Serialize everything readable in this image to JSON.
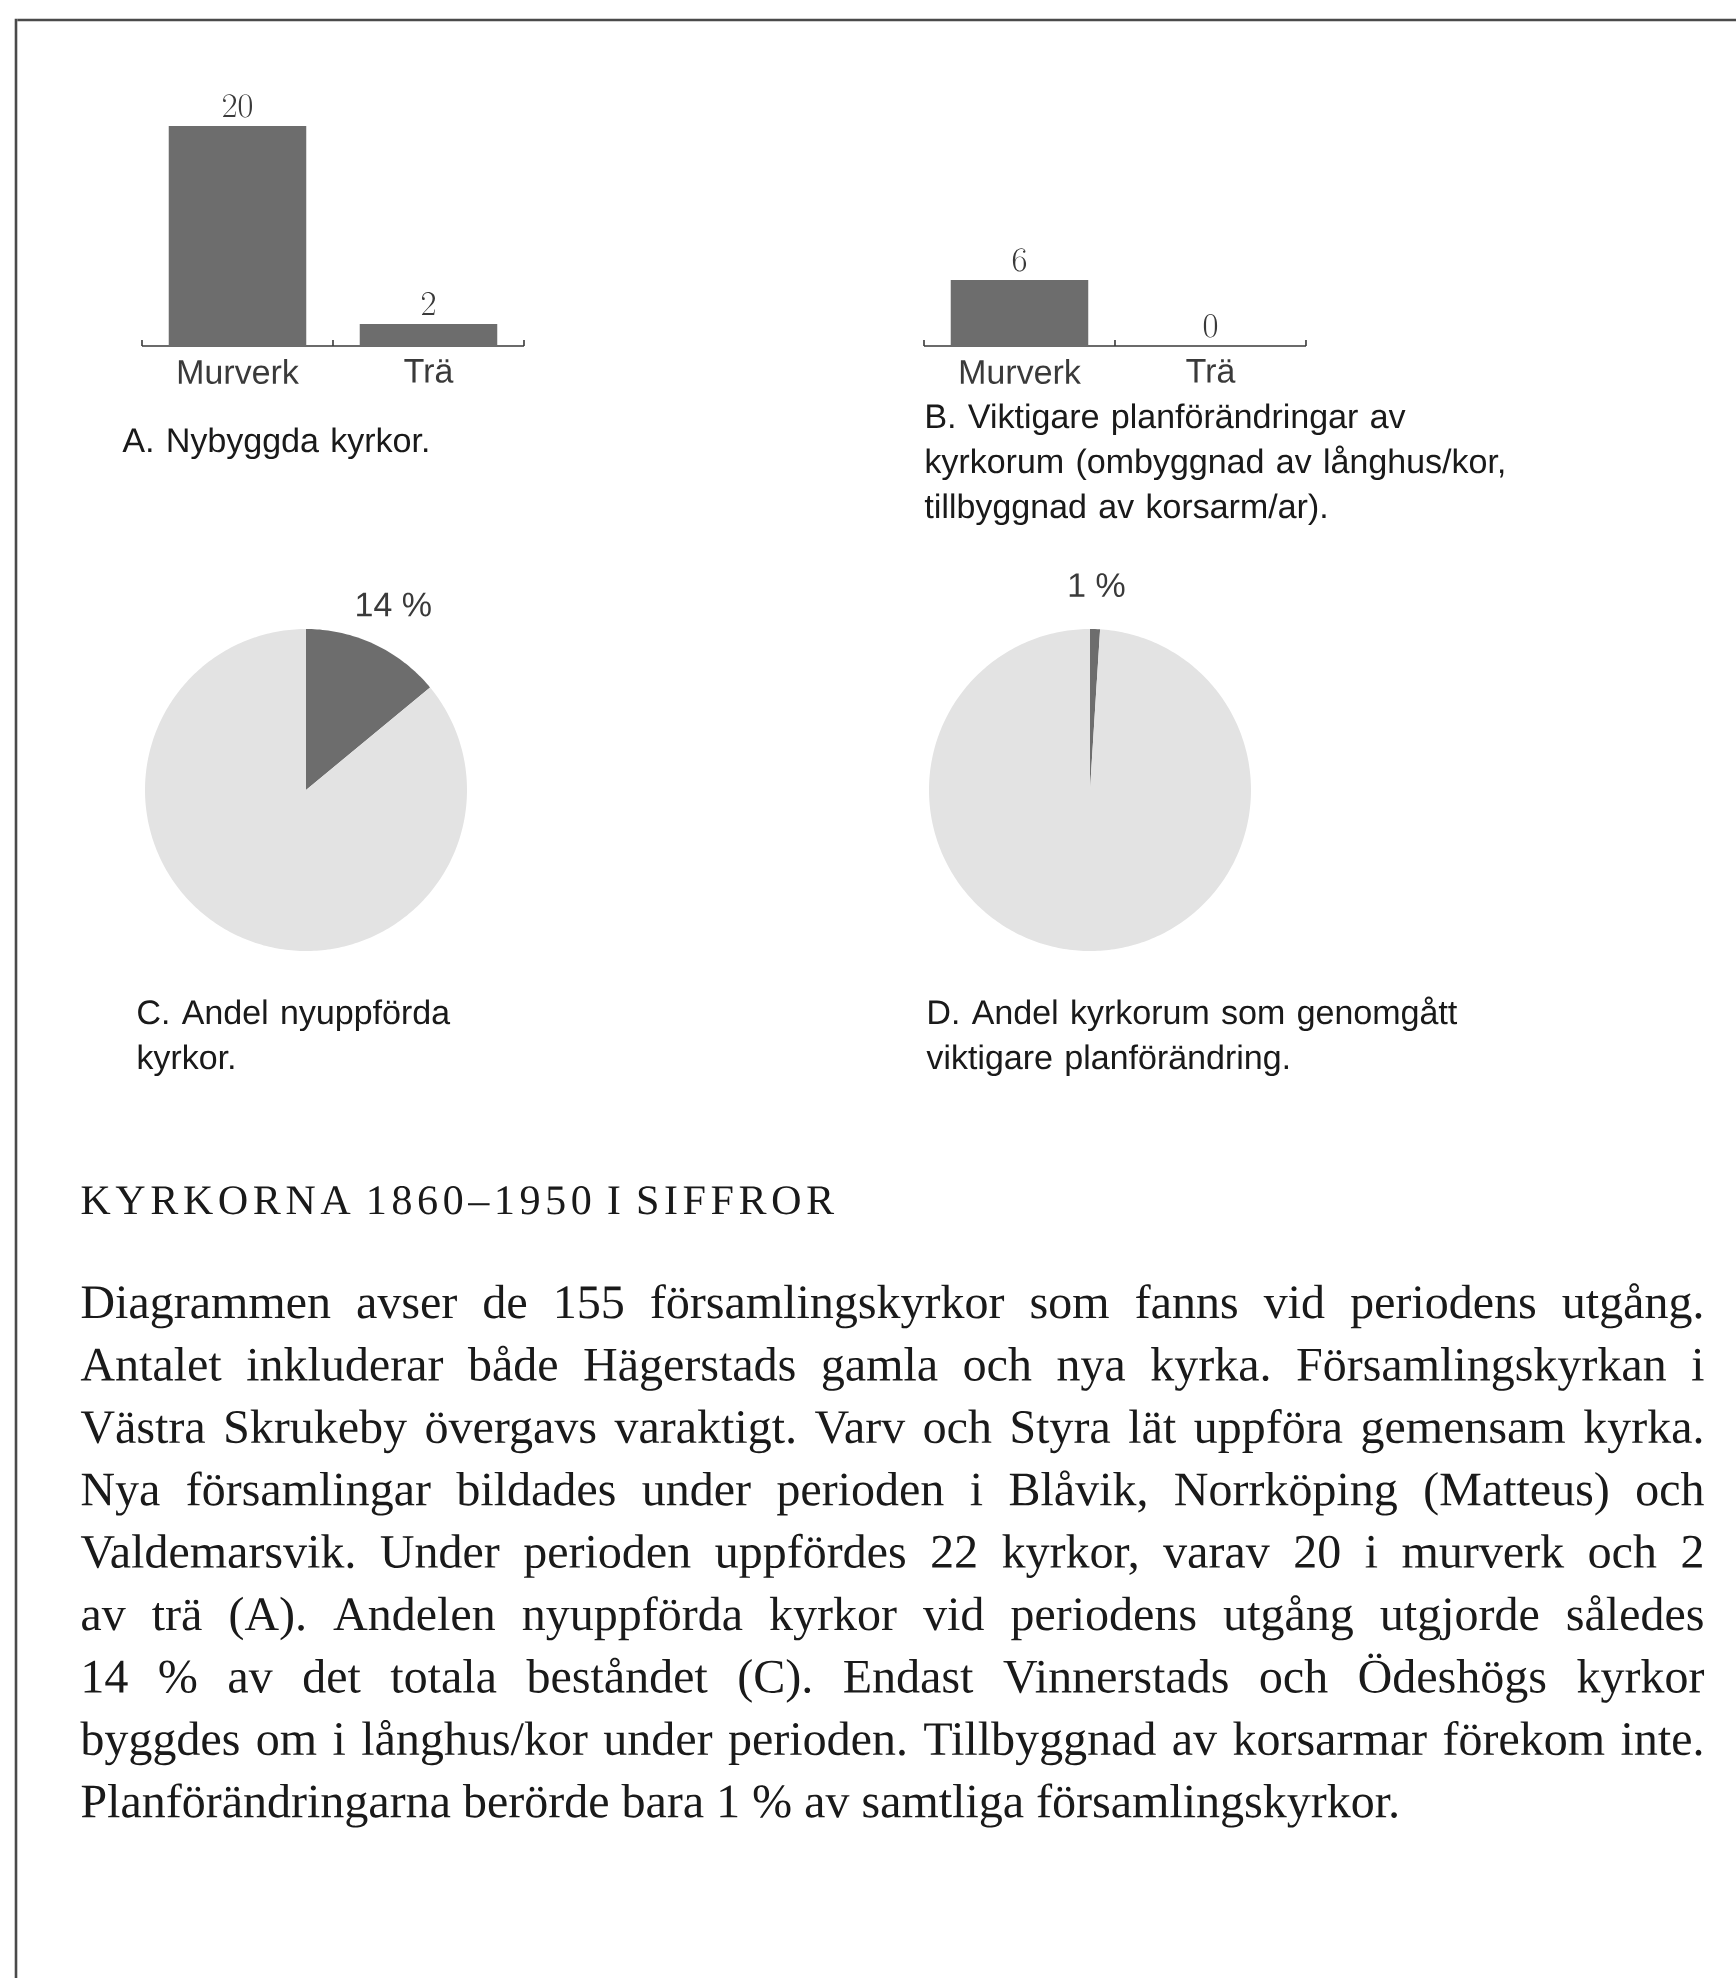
{
  "chart_data": [
    {
      "type": "bar",
      "title": "A. Nybyggda kyrkor.",
      "categories": [
        "Murverk",
        "Trä"
      ],
      "values": [
        20,
        2
      ],
      "color": "#6d6d6d",
      "data_labels": true,
      "tick_labels": "x"
    },
    {
      "type": "bar",
      "title": "B. Viktigare planförändringar av kyrkorum (ombyggnad av långhus/kor, tillbyggnad av korsarm/ar).",
      "categories": [
        "Murverk",
        "Trä"
      ],
      "values": [
        6,
        0
      ],
      "color": "#6d6d6d",
      "data_labels": true,
      "tick_labels": "x"
    },
    {
      "type": "pie",
      "title": "C. Andel nyuppförda kyrkor.",
      "categories": [
        null,
        null
      ],
      "values": [
        14,
        86
      ],
      "colors": [
        "#6d6d6d",
        "#e3e3e3"
      ],
      "value_labels": [
        "14 %",
        null
      ]
    },
    {
      "type": "pie",
      "title": "D. Andel kyrkorum som genomgått viktigare planförändring.",
      "categories": [
        null,
        null
      ],
      "values": [
        1,
        99
      ],
      "colors": [
        "#6d6d6d",
        "#e3e3e3"
      ],
      "value_labels": [
        "1 %",
        null
      ]
    },
    {
      "type": "other",
      "title": "KYRKORNA 1860–1950 I SIFFROR",
      "annotations": [
        "Diagrammen avser de 155 församlingskyrkor som fanns vid periodens utgång. Antalet inkluderar både Hägerstads gamla och nya kyrka. Församlingskyrkan i Västra Skrukeby övergavs varaktigt. Varv och Styra lät uppföra gemensam kyrka. Nya församlingar bildades under perioden i Blåvik, Norrköping (Matteus) och Valdemarsvik. Under perioden uppfördes 22 kyrkor, varav 20 i murverk och 2 av trä (A). Andelen nyuppförda kyrkor vid periodens utgång utgjorde således 14 % av det totala beståndet (C). Endast Vinnerstads och Ödeshögs kyrkor byggdes om i långhus/kor under perioden. Tillbyggnad av korsarmar förekom inte. Planförändringarna berörde bara 1 % av samtliga församlingskyrkor."
      ]
    }
  ]
}
